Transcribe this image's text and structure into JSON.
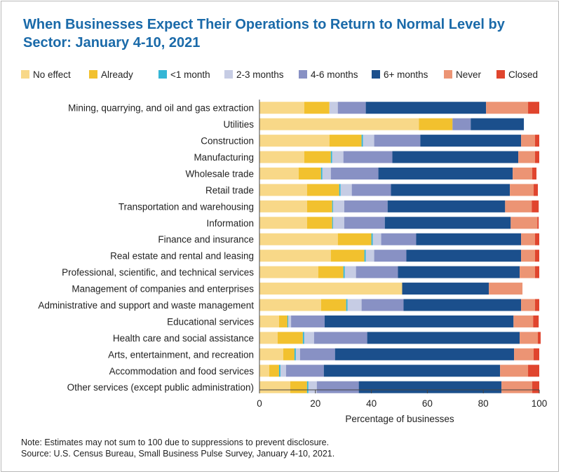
{
  "chart_data": {
    "type": "bar",
    "orientation": "horizontal",
    "stacked": true,
    "title": "When Businesses Expect Their Operations to Return to Normal Level by Sector: January 4-10, 2021",
    "xlabel": "Percentage of businesses",
    "ylabel": "",
    "xlim": [
      0,
      100
    ],
    "xticks": [
      0,
      20,
      40,
      60,
      80,
      100
    ],
    "grid": false,
    "legend_position": "top",
    "categories": [
      "Mining, quarrying, and oil and gas extraction",
      "Utilities",
      "Construction",
      "Manufacturing",
      "Wholesale trade",
      "Retail trade",
      "Transportation and warehousing",
      "Information",
      "Finance and insurance",
      "Real estate and rental and leasing",
      "Professional, scientific, and technical services",
      "Management of companies and enterprises",
      "Administrative and support and waste management",
      "Educational services",
      "Health care and social assistance",
      "Arts, entertainment, and recreation",
      "Accommodation and food services",
      "Other services (except public administration)"
    ],
    "series": [
      {
        "name": "No effect",
        "color": "#f8d888",
        "values": [
          16,
          57,
          25,
          16,
          14,
          17,
          17,
          17,
          28,
          25.5,
          21,
          51,
          22,
          7,
          6.5,
          8.5,
          3.5,
          11
        ]
      },
      {
        "name": "Already",
        "color": "#f2c12e",
        "values": [
          9,
          12,
          11.5,
          9.5,
          8,
          11.5,
          9,
          9,
          12,
          12,
          9,
          0,
          9,
          3,
          9,
          4,
          3.5,
          6
        ]
      },
      {
        "name": "<1 month",
        "color": "#34b6d6",
        "values": [
          0,
          0,
          0.5,
          0.5,
          0.5,
          0.5,
          0.3,
          0.3,
          0.5,
          0.5,
          0.5,
          0,
          0.5,
          0.3,
          0.5,
          0.5,
          0.5,
          0.5
        ]
      },
      {
        "name": "2-3 months",
        "color": "#c6cce4",
        "values": [
          3,
          0,
          4,
          4,
          3,
          4,
          4,
          4,
          3,
          3,
          4,
          0,
          5,
          1,
          3.5,
          1.5,
          2,
          3
        ]
      },
      {
        "name": "4-6 months",
        "color": "#8891c4",
        "values": [
          10,
          6.5,
          16.5,
          17.5,
          17,
          14,
          15.5,
          14.5,
          12.5,
          11.5,
          15,
          0,
          15,
          12,
          19,
          12.5,
          13.5,
          15
        ]
      },
      {
        "name": "6+ months",
        "color": "#1b4f8c",
        "values": [
          43,
          19,
          36,
          45,
          48,
          42.5,
          42,
          45,
          37.5,
          41,
          43.5,
          31,
          42,
          67.5,
          54.5,
          64,
          63,
          51
        ]
      },
      {
        "name": "Never",
        "color": "#ec9474",
        "values": [
          15,
          0,
          5,
          6,
          7,
          8.5,
          9.5,
          9.5,
          5,
          5,
          5.5,
          12,
          5,
          7,
          6.5,
          7,
          10,
          11
        ]
      },
      {
        "name": "Closed",
        "color": "#e0452e",
        "values": [
          4,
          0,
          1.5,
          1.5,
          1.5,
          1.5,
          2.5,
          0.5,
          1.5,
          1.5,
          1.5,
          0,
          1.5,
          2,
          1,
          2,
          4,
          2.5
        ]
      }
    ]
  },
  "notes": {
    "line1": "Note: Estimates may not sum to 100 due to suppressions to prevent disclosure.",
    "line2": "Source: U.S. Census Bureau, Small Business Pulse Survey, January 4-10, 2021."
  }
}
